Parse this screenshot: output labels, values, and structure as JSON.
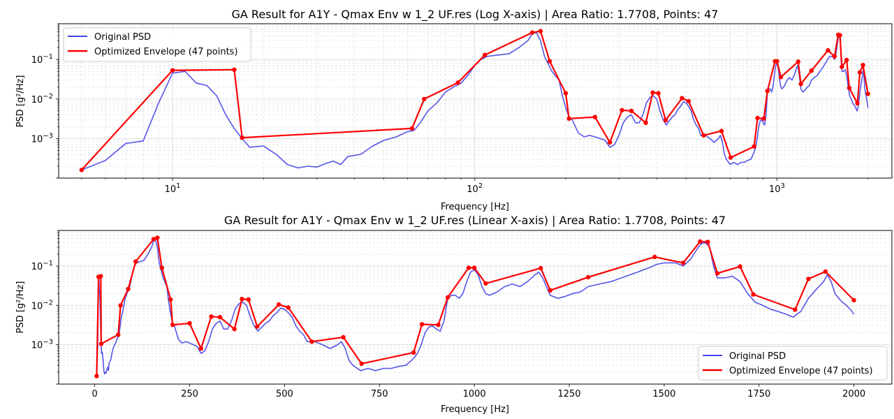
{
  "colors": {
    "psd": "#4343e8",
    "envelope": "#ff0000",
    "grid": "#d6d6d6"
  },
  "legend": {
    "psd": "Original PSD",
    "envelope": "Optimized Envelope (47 points)"
  },
  "chart_data": [
    {
      "type": "line",
      "title": "GA Result for A1Y - Qmax Env w 1_2 UF.res (Log X-axis) | Area Ratio: 1.7708, Points: 47",
      "xlabel": "Frequency [Hz]",
      "ylabel": "PSD [g²/Hz]",
      "xscale": "log",
      "yscale": "log",
      "xlim": [
        4.2,
        2400
      ],
      "ylim": [
        0.0001,
        0.8
      ],
      "grid": true,
      "legend_position": "top-left",
      "xticks": [
        {
          "value": 10,
          "base": "10",
          "exp": "1"
        },
        {
          "value": 100,
          "base": "10",
          "exp": "2"
        },
        {
          "value": 1000,
          "base": "10",
          "exp": "3"
        }
      ],
      "yticks": [
        {
          "value": 0.001,
          "base": "10",
          "exp": "−3"
        },
        {
          "value": 0.01,
          "base": "10",
          "exp": "−2"
        },
        {
          "value": 0.1,
          "base": "10",
          "exp": "−1"
        }
      ]
    },
    {
      "type": "line",
      "title": "GA Result for A1Y - Qmax Env w 1_2 UF.res (Linear X-axis) | Area Ratio: 1.7708, Points: 47",
      "xlabel": "Frequency [Hz]",
      "ylabel": "PSD [g²/Hz]",
      "xscale": "linear",
      "yscale": "log",
      "xlim": [
        -95,
        2100
      ],
      "ylim": [
        0.0001,
        0.8
      ],
      "grid": true,
      "legend_position": "lower-right",
      "xticks": [
        {
          "value": 0,
          "label": "0"
        },
        {
          "value": 250,
          "label": "250"
        },
        {
          "value": 500,
          "label": "500"
        },
        {
          "value": 750,
          "label": "750"
        },
        {
          "value": 1000,
          "label": "1000"
        },
        {
          "value": 1250,
          "label": "1250"
        },
        {
          "value": 1500,
          "label": "1500"
        },
        {
          "value": 1750,
          "label": "1750"
        },
        {
          "value": 2000,
          "label": "2000"
        }
      ],
      "yticks": [
        {
          "value": 0.001,
          "base": "10",
          "exp": "−3"
        },
        {
          "value": 0.01,
          "base": "10",
          "exp": "−2"
        },
        {
          "value": 0.1,
          "base": "10",
          "exp": "−1"
        }
      ]
    }
  ],
  "series": {
    "original_psd": [
      [
        5,
        0.00016
      ],
      [
        6,
        0.00028
      ],
      [
        7,
        0.00075
      ],
      [
        8,
        0.00087
      ],
      [
        9,
        0.008
      ],
      [
        10,
        0.045
      ],
      [
        11,
        0.05
      ],
      [
        12,
        0.025
      ],
      [
        13,
        0.022
      ],
      [
        14,
        0.012
      ],
      [
        15,
        0.004
      ],
      [
        16,
        0.0018
      ],
      [
        17,
        0.001
      ],
      [
        18,
        0.0006
      ],
      [
        20,
        0.00065
      ],
      [
        22,
        0.0004
      ],
      [
        24,
        0.00022
      ],
      [
        26,
        0.00018
      ],
      [
        28,
        0.0002
      ],
      [
        30,
        0.00019
      ],
      [
        32,
        0.00023
      ],
      [
        34,
        0.00027
      ],
      [
        36,
        0.00022
      ],
      [
        38,
        0.00035
      ],
      [
        42,
        0.0004
      ],
      [
        46,
        0.00065
      ],
      [
        50,
        0.0009
      ],
      [
        55,
        0.0011
      ],
      [
        60,
        0.0015
      ],
      [
        63,
        0.0016
      ],
      [
        66,
        0.0025
      ],
      [
        70,
        0.005
      ],
      [
        75,
        0.008
      ],
      [
        80,
        0.015
      ],
      [
        85,
        0.02
      ],
      [
        90,
        0.025
      ],
      [
        95,
        0.04
      ],
      [
        100,
        0.07
      ],
      [
        105,
        0.1
      ],
      [
        110,
        0.12
      ],
      [
        120,
        0.13
      ],
      [
        130,
        0.14
      ],
      [
        140,
        0.2
      ],
      [
        150,
        0.3
      ],
      [
        155,
        0.45
      ],
      [
        160,
        0.48
      ],
      [
        165,
        0.3
      ],
      [
        170,
        0.12
      ],
      [
        180,
        0.05
      ],
      [
        190,
        0.03
      ],
      [
        195,
        0.012
      ],
      [
        200,
        0.006
      ],
      [
        205,
        0.0035
      ],
      [
        210,
        0.003
      ],
      [
        220,
        0.0014
      ],
      [
        230,
        0.0011
      ],
      [
        240,
        0.0012
      ],
      [
        250,
        0.0011
      ],
      [
        260,
        0.001
      ],
      [
        270,
        0.0009
      ],
      [
        280,
        0.0006
      ],
      [
        290,
        0.0007
      ],
      [
        300,
        0.0012
      ],
      [
        310,
        0.0025
      ],
      [
        320,
        0.0035
      ],
      [
        330,
        0.004
      ],
      [
        340,
        0.0025
      ],
      [
        350,
        0.0025
      ],
      [
        360,
        0.004
      ],
      [
        370,
        0.008
      ],
      [
        380,
        0.011
      ],
      [
        390,
        0.012
      ],
      [
        400,
        0.01
      ],
      [
        410,
        0.005
      ],
      [
        420,
        0.003
      ],
      [
        430,
        0.0022
      ],
      [
        440,
        0.0028
      ],
      [
        450,
        0.0035
      ],
      [
        460,
        0.004
      ],
      [
        470,
        0.0055
      ],
      [
        480,
        0.0065
      ],
      [
        490,
        0.0085
      ],
      [
        500,
        0.008
      ],
      [
        510,
        0.0065
      ],
      [
        520,
        0.005
      ],
      [
        530,
        0.003
      ],
      [
        540,
        0.0022
      ],
      [
        550,
        0.0018
      ],
      [
        560,
        0.0012
      ],
      [
        580,
        0.0012
      ],
      [
        600,
        0.001
      ],
      [
        620,
        0.0008
      ],
      [
        640,
        0.001
      ],
      [
        650,
        0.0012
      ],
      [
        660,
        0.0008
      ],
      [
        670,
        0.0004
      ],
      [
        680,
        0.0003
      ],
      [
        700,
        0.00022
      ],
      [
        720,
        0.00025
      ],
      [
        740,
        0.00022
      ],
      [
        760,
        0.00025
      ],
      [
        780,
        0.00025
      ],
      [
        800,
        0.00028
      ],
      [
        820,
        0.0003
      ],
      [
        840,
        0.00045
      ],
      [
        850,
        0.0006
      ],
      [
        860,
        0.001
      ],
      [
        870,
        0.002
      ],
      [
        880,
        0.0028
      ],
      [
        890,
        0.003
      ],
      [
        900,
        0.0025
      ],
      [
        910,
        0.0022
      ],
      [
        920,
        0.004
      ],
      [
        930,
        0.015
      ],
      [
        940,
        0.018
      ],
      [
        950,
        0.018
      ],
      [
        960,
        0.015
      ],
      [
        970,
        0.02
      ],
      [
        980,
        0.04
      ],
      [
        990,
        0.07
      ],
      [
        1000,
        0.08
      ],
      [
        1010,
        0.06
      ],
      [
        1020,
        0.03
      ],
      [
        1030,
        0.02
      ],
      [
        1040,
        0.018
      ],
      [
        1060,
        0.022
      ],
      [
        1080,
        0.03
      ],
      [
        1100,
        0.035
      ],
      [
        1120,
        0.03
      ],
      [
        1140,
        0.04
      ],
      [
        1160,
        0.06
      ],
      [
        1170,
        0.07
      ],
      [
        1180,
        0.05
      ],
      [
        1190,
        0.03
      ],
      [
        1200,
        0.018
      ],
      [
        1220,
        0.015
      ],
      [
        1240,
        0.017
      ],
      [
        1260,
        0.02
      ],
      [
        1280,
        0.022
      ],
      [
        1300,
        0.03
      ],
      [
        1330,
        0.035
      ],
      [
        1360,
        0.04
      ],
      [
        1400,
        0.055
      ],
      [
        1430,
        0.07
      ],
      [
        1460,
        0.09
      ],
      [
        1480,
        0.11
      ],
      [
        1500,
        0.12
      ],
      [
        1530,
        0.12
      ],
      [
        1550,
        0.1
      ],
      [
        1570,
        0.15
      ],
      [
        1590,
        0.3
      ],
      [
        1600,
        0.38
      ],
      [
        1610,
        0.38
      ],
      [
        1620,
        0.3
      ],
      [
        1630,
        0.1
      ],
      [
        1640,
        0.05
      ],
      [
        1660,
        0.05
      ],
      [
        1680,
        0.055
      ],
      [
        1700,
        0.04
      ],
      [
        1720,
        0.02
      ],
      [
        1740,
        0.012
      ],
      [
        1760,
        0.01
      ],
      [
        1780,
        0.008
      ],
      [
        1800,
        0.007
      ],
      [
        1820,
        0.006
      ],
      [
        1840,
        0.005
      ],
      [
        1850,
        0.006
      ],
      [
        1860,
        0.007
      ],
      [
        1880,
        0.015
      ],
      [
        1900,
        0.025
      ],
      [
        1920,
        0.04
      ],
      [
        1930,
        0.06
      ],
      [
        1940,
        0.04
      ],
      [
        1950,
        0.02
      ],
      [
        1960,
        0.015
      ],
      [
        1970,
        0.012
      ],
      [
        1980,
        0.01
      ],
      [
        1990,
        0.008
      ],
      [
        2000,
        0.006
      ]
    ],
    "optimized_envelope": [
      [
        5,
        0.00016
      ],
      [
        10,
        0.053
      ],
      [
        16,
        0.055
      ],
      [
        17,
        0.00105
      ],
      [
        62,
        0.0018
      ],
      [
        68,
        0.01
      ],
      [
        88,
        0.026
      ],
      [
        108,
        0.13
      ],
      [
        155,
        0.48
      ],
      [
        165,
        0.52
      ],
      [
        177,
        0.09
      ],
      [
        200,
        0.014
      ],
      [
        205,
        0.0032
      ],
      [
        250,
        0.0035
      ],
      [
        280,
        0.0008
      ],
      [
        307,
        0.0052
      ],
      [
        330,
        0.005
      ],
      [
        368,
        0.0025
      ],
      [
        388,
        0.0145
      ],
      [
        405,
        0.014
      ],
      [
        428,
        0.0029
      ],
      [
        485,
        0.0105
      ],
      [
        510,
        0.0088
      ],
      [
        572,
        0.0012
      ],
      [
        655,
        0.00155
      ],
      [
        703,
        0.00033
      ],
      [
        840,
        0.00063
      ],
      [
        862,
        0.0033
      ],
      [
        905,
        0.0032
      ],
      [
        930,
        0.016
      ],
      [
        985,
        0.09
      ],
      [
        1000,
        0.09
      ],
      [
        1030,
        0.036
      ],
      [
        1175,
        0.088
      ],
      [
        1200,
        0.024
      ],
      [
        1300,
        0.052
      ],
      [
        1475,
        0.17
      ],
      [
        1550,
        0.12
      ],
      [
        1595,
        0.42
      ],
      [
        1615,
        0.41
      ],
      [
        1640,
        0.065
      ],
      [
        1700,
        0.097
      ],
      [
        1735,
        0.019
      ],
      [
        1845,
        0.0078
      ],
      [
        1880,
        0.047
      ],
      [
        1925,
        0.072
      ],
      [
        2000,
        0.0135
      ]
    ]
  }
}
